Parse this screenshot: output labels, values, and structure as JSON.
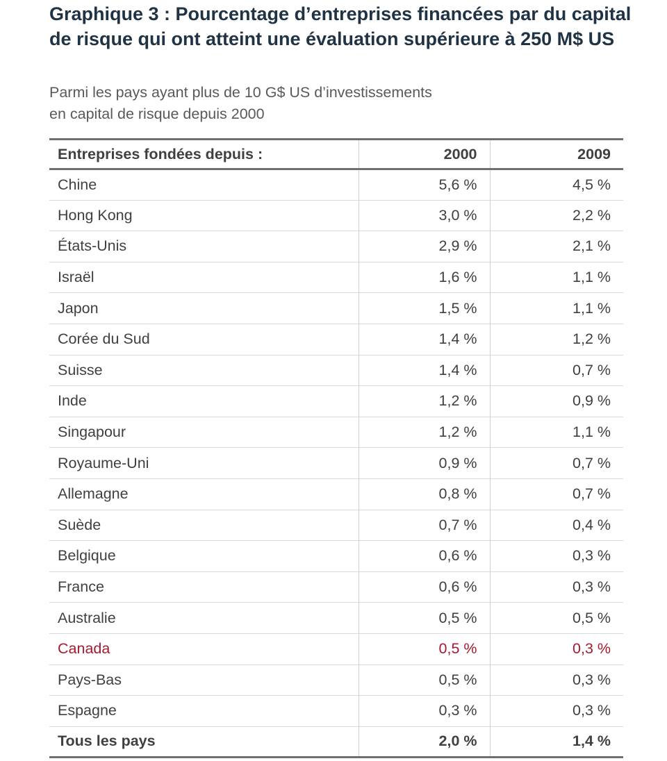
{
  "title": "Graphique 3 : Pourcentage d’entreprises financées par du capital de risque qui ont atteint une évaluation supérieure à 250 M$ US",
  "subtitle_line1": "Parmi les pays ayant plus de 10 G$ US d’investissements",
  "subtitle_line2": "en capital de risque depuis 2000",
  "colors": {
    "title": "#1f3344",
    "text": "#404040",
    "highlight": "#a6192e",
    "rule": "#6f6f6f"
  },
  "chart_data": {
    "type": "table",
    "title": "Graphique 3 : Pourcentage d’entreprises financées par du capital de risque qui ont atteint une évaluation supérieure à 250 M$ US",
    "subtitle": "Parmi les pays ayant plus de 10 G$ US d’investissements en capital de risque depuis 2000",
    "columns": [
      "Entreprises fondées depuis :",
      "2000",
      "2009"
    ],
    "highlight_row": "Canada",
    "rows": [
      [
        "Chine",
        "5,6 %",
        "4,5 %"
      ],
      [
        "Hong Kong",
        "3,0 %",
        "2,2 %"
      ],
      [
        "États-Unis",
        "2,9 %",
        "2,1 %"
      ],
      [
        "Israël",
        "1,6 %",
        "1,1 %"
      ],
      [
        "Japon",
        "1,5 %",
        "1,1 %"
      ],
      [
        "Corée du Sud",
        "1,4 %",
        "1,2 %"
      ],
      [
        "Suisse",
        "1,4 %",
        "0,7 %"
      ],
      [
        "Inde",
        "1,2 %",
        "0,9 %"
      ],
      [
        "Singapour",
        "1,2 %",
        "1,1 %"
      ],
      [
        "Royaume-Uni",
        "0,9 %",
        "0,7 %"
      ],
      [
        "Allemagne",
        "0,8 %",
        "0,7 %"
      ],
      [
        "Suède",
        "0,7 %",
        "0,4 %"
      ],
      [
        "Belgique",
        "0,6 %",
        "0,3 %"
      ],
      [
        "France",
        "0,6 %",
        "0,3 %"
      ],
      [
        "Australie",
        "0,5 %",
        "0,5 %"
      ],
      [
        "Canada",
        "0,5 %",
        "0,3 %"
      ],
      [
        "Pays-Bas",
        "0,5 %",
        "0,3 %"
      ],
      [
        "Espagne",
        "0,3 %",
        "0,3 %"
      ]
    ],
    "total_row": [
      "Tous les pays",
      "2,0 %",
      "1,4 %"
    ]
  }
}
